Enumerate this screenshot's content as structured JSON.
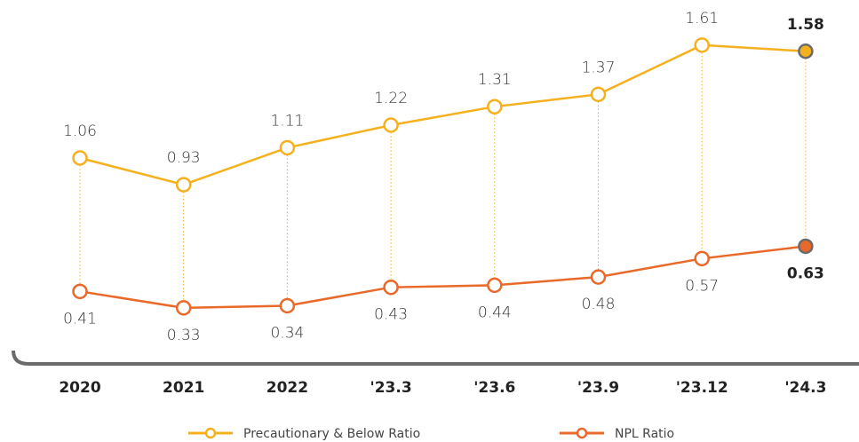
{
  "chart_data": {
    "type": "line",
    "categories": [
      "2020",
      "2021",
      "2022",
      "'23.3",
      "'23.6",
      "'23.9",
      "'23.12",
      "'24.3"
    ],
    "series": [
      {
        "name": "Precautionary & Below Ratio",
        "color": "#f5b11d",
        "values": [
          1.06,
          0.93,
          1.11,
          1.22,
          1.31,
          1.37,
          1.61,
          1.58
        ]
      },
      {
        "name": "NPL Ratio",
        "color": "#e8692a",
        "values": [
          0.41,
          0.33,
          0.34,
          0.43,
          0.44,
          0.48,
          0.57,
          0.63
        ]
      }
    ],
    "ylim": [
      0.1,
      1.7
    ]
  }
}
